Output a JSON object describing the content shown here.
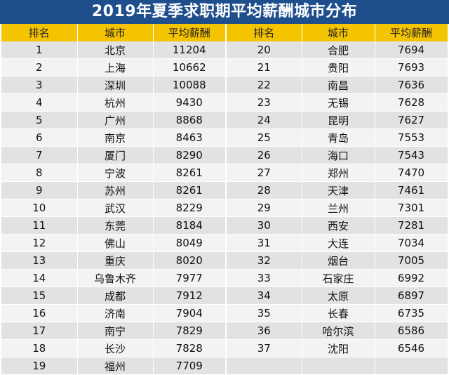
{
  "title": "2019年夏季求职期平均薪酬城市分布",
  "headers": {
    "rank": "排名",
    "city": "城市",
    "salary": "平均薪酬"
  },
  "rows": [
    {
      "l": {
        "rank": "1",
        "city": "北京",
        "salary": "11204"
      },
      "r": {
        "rank": "20",
        "city": "合肥",
        "salary": "7694"
      }
    },
    {
      "l": {
        "rank": "2",
        "city": "上海",
        "salary": "10662"
      },
      "r": {
        "rank": "21",
        "city": "贵阳",
        "salary": "7693"
      }
    },
    {
      "l": {
        "rank": "3",
        "city": "深圳",
        "salary": "10088"
      },
      "r": {
        "rank": "22",
        "city": "南昌",
        "salary": "7636"
      }
    },
    {
      "l": {
        "rank": "4",
        "city": "杭州",
        "salary": "9430"
      },
      "r": {
        "rank": "23",
        "city": "无锡",
        "salary": "7628"
      }
    },
    {
      "l": {
        "rank": "5",
        "city": "广州",
        "salary": "8868"
      },
      "r": {
        "rank": "24",
        "city": "昆明",
        "salary": "7627"
      }
    },
    {
      "l": {
        "rank": "6",
        "city": "南京",
        "salary": "8463"
      },
      "r": {
        "rank": "25",
        "city": "青岛",
        "salary": "7553"
      }
    },
    {
      "l": {
        "rank": "7",
        "city": "厦门",
        "salary": "8290"
      },
      "r": {
        "rank": "26",
        "city": "海口",
        "salary": "7543"
      }
    },
    {
      "l": {
        "rank": "8",
        "city": "宁波",
        "salary": "8261"
      },
      "r": {
        "rank": "27",
        "city": "郑州",
        "salary": "7470"
      }
    },
    {
      "l": {
        "rank": "9",
        "city": "苏州",
        "salary": "8261"
      },
      "r": {
        "rank": "28",
        "city": "天津",
        "salary": "7461"
      }
    },
    {
      "l": {
        "rank": "10",
        "city": "武汉",
        "salary": "8229"
      },
      "r": {
        "rank": "29",
        "city": "兰州",
        "salary": "7301"
      }
    },
    {
      "l": {
        "rank": "11",
        "city": "东莞",
        "salary": "8184"
      },
      "r": {
        "rank": "30",
        "city": "西安",
        "salary": "7281"
      }
    },
    {
      "l": {
        "rank": "12",
        "city": "佛山",
        "salary": "8049"
      },
      "r": {
        "rank": "31",
        "city": "大连",
        "salary": "7034"
      }
    },
    {
      "l": {
        "rank": "13",
        "city": "重庆",
        "salary": "8020"
      },
      "r": {
        "rank": "32",
        "city": "烟台",
        "salary": "7005"
      }
    },
    {
      "l": {
        "rank": "14",
        "city": "乌鲁木齐",
        "salary": "7977"
      },
      "r": {
        "rank": "33",
        "city": "石家庄",
        "salary": "6992"
      }
    },
    {
      "l": {
        "rank": "15",
        "city": "成都",
        "salary": "7912"
      },
      "r": {
        "rank": "34",
        "city": "太原",
        "salary": "6897"
      }
    },
    {
      "l": {
        "rank": "16",
        "city": "济南",
        "salary": "7904"
      },
      "r": {
        "rank": "35",
        "city": "长春",
        "salary": "6735"
      }
    },
    {
      "l": {
        "rank": "17",
        "city": "南宁",
        "salary": "7829"
      },
      "r": {
        "rank": "36",
        "city": "哈尔滨",
        "salary": "6586"
      }
    },
    {
      "l": {
        "rank": "18",
        "city": "长沙",
        "salary": "7828"
      },
      "r": {
        "rank": "37",
        "city": "沈阳",
        "salary": "6546"
      }
    },
    {
      "l": {
        "rank": "19",
        "city": "福州",
        "salary": "7709"
      },
      "r": {
        "rank": "",
        "city": "",
        "salary": ""
      }
    }
  ]
}
